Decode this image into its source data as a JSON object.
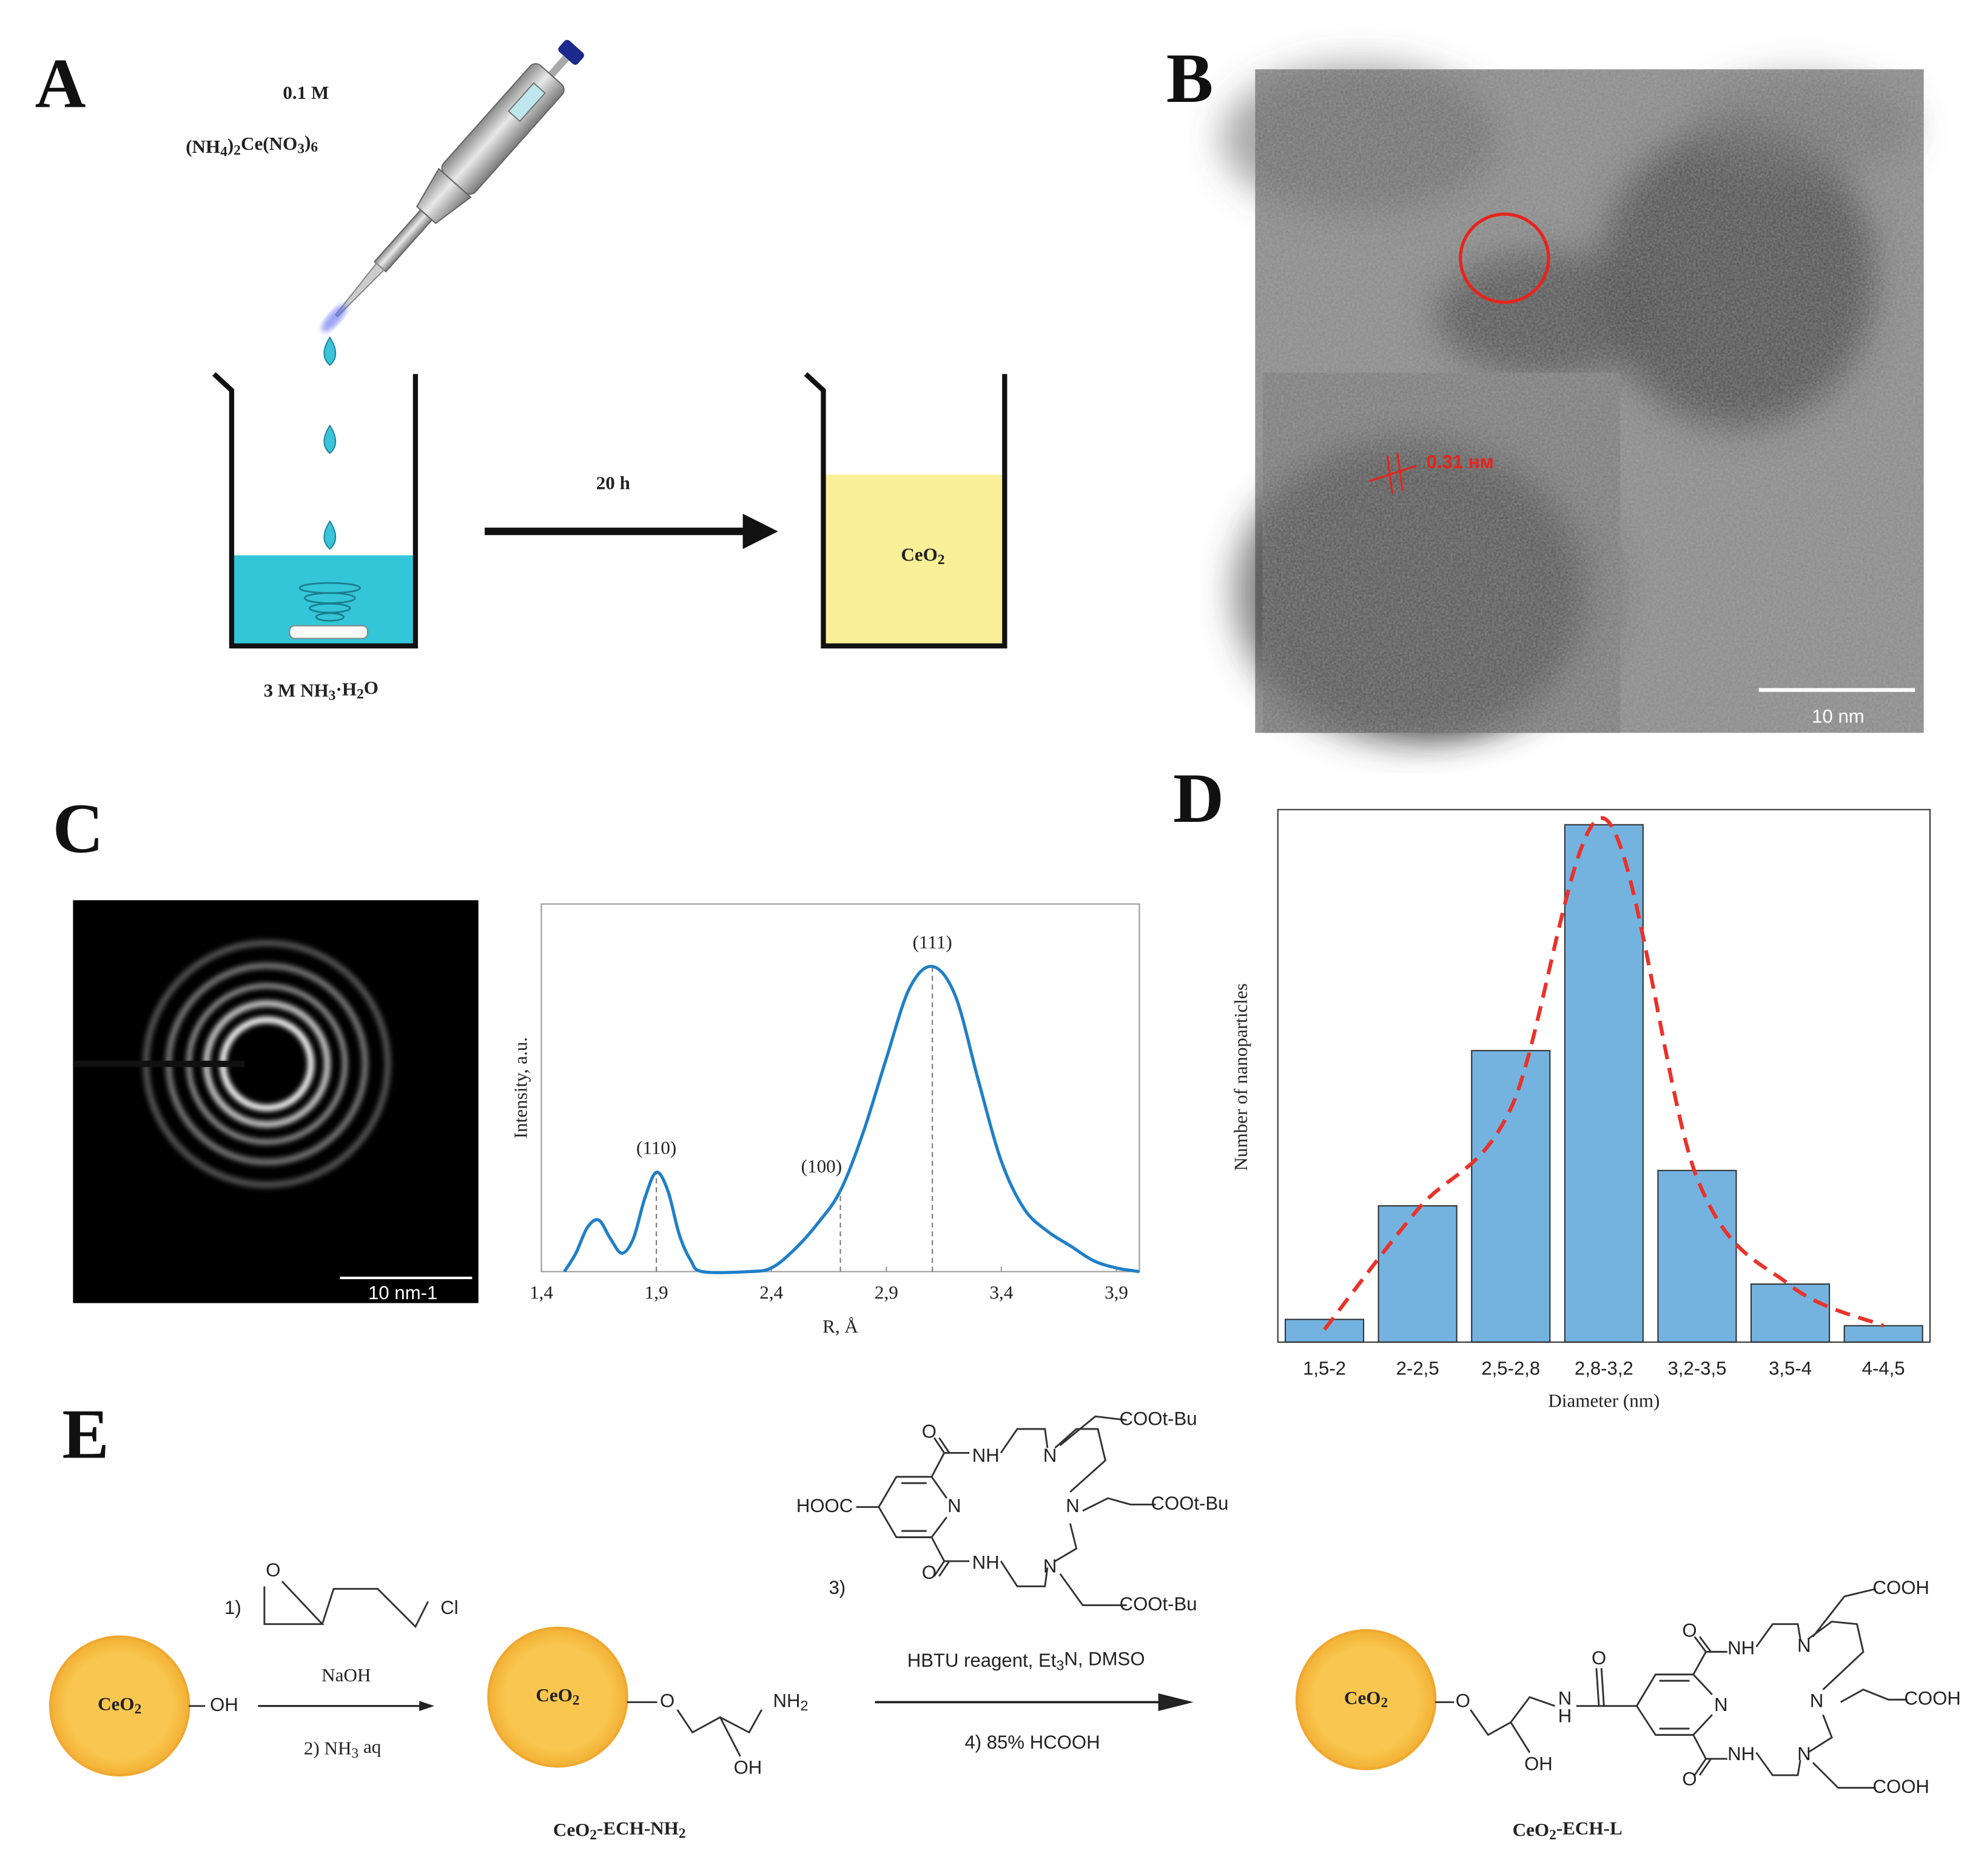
{
  "panel_a": {
    "label": "A",
    "reagent_conc": "0.1 M",
    "reagent": [
      "(NH",
      "4",
      ")",
      "2",
      "Ce(NO",
      "3",
      ")",
      "6"
    ],
    "solution": [
      "3 M NH",
      "3",
      "·H",
      "2",
      "O"
    ],
    "time": "20 h",
    "product": [
      "CeO",
      "2"
    ]
  },
  "panel_b": {
    "label": "B",
    "spacing": "0.31 нм",
    "scale_bar": "10 nm"
  },
  "panel_c": {
    "label": "C",
    "scale_bar": "10 nm-1"
  },
  "panel_d": {
    "label": "D"
  },
  "chart_data": [
    {
      "type": "line",
      "xlabel": "R, Å",
      "ylabel": "Intensity, a.u.",
      "color": "#1f7fc8",
      "x": [
        1.5,
        1.55,
        1.6,
        1.65,
        1.7,
        1.75,
        1.8,
        1.85,
        1.9,
        1.95,
        2.0,
        2.05,
        2.1,
        2.3,
        2.4,
        2.5,
        2.6,
        2.7,
        2.8,
        2.9,
        3.0,
        3.1,
        3.2,
        3.3,
        3.4,
        3.5,
        3.6,
        3.7,
        3.8,
        3.9,
        4.0
      ],
      "values": [
        0.0,
        0.05,
        0.12,
        0.14,
        0.09,
        0.05,
        0.09,
        0.2,
        0.27,
        0.22,
        0.1,
        0.03,
        0.0,
        0.0,
        0.01,
        0.06,
        0.13,
        0.22,
        0.38,
        0.58,
        0.77,
        0.83,
        0.75,
        0.52,
        0.3,
        0.17,
        0.11,
        0.07,
        0.03,
        0.01,
        0.0
      ],
      "xlim": [
        1.4,
        4.0
      ],
      "ylim": [
        0,
        1
      ],
      "xticks": [
        {
          "value": 1.4,
          "label": "1,4"
        },
        {
          "value": 1.9,
          "label": "1,9"
        },
        {
          "value": 2.4,
          "label": "2,4"
        },
        {
          "value": 2.9,
          "label": "2,9"
        },
        {
          "value": 3.4,
          "label": "3,4"
        },
        {
          "value": 3.9,
          "label": "3,9"
        }
      ],
      "peaks": [
        {
          "label": "(110)",
          "x": 1.9
        },
        {
          "label": "(100)",
          "x": 2.7
        },
        {
          "label": "(111)",
          "x": 3.1
        }
      ]
    },
    {
      "type": "bar",
      "xlabel": "Diameter (nm)",
      "ylabel": "Number of nanoparticles",
      "color": "#74b3e0",
      "categories": [
        "1,5-2",
        "2-2,5",
        "2,5-2,8",
        "2,8-3,2",
        "3,2-3,5",
        "3,5-4",
        "4-4,5"
      ],
      "values": [
        18,
        108,
        231,
        410,
        136,
        46,
        13
      ],
      "ylim": [
        0,
        420
      ],
      "fit": {
        "color": "#e8332b",
        "values": [
          10,
          105,
          185,
          415,
          130,
          45,
          13
        ]
      }
    }
  ],
  "panel_e": {
    "label": "E",
    "core": [
      "CeO",
      "2"
    ],
    "hydroxyl": "OH",
    "step1": "1)",
    "epoxide_o": "O",
    "chloro": "Cl",
    "base": "NaOH",
    "step2": [
      "2) NH",
      "3",
      " aq"
    ],
    "intermediate": {
      "core": [
        "CeO",
        "2"
      ],
      "ether_o": "O",
      "amine": [
        "NH",
        "2"
      ],
      "hydroxyl": "OH",
      "name": [
        "CeO",
        "2",
        "-ECH-NH",
        "2"
      ]
    },
    "ligand": {
      "step": "3)",
      "acid": "HOOC",
      "carbonyl_o": [
        "O",
        "O"
      ],
      "amide": [
        "NH",
        "NH"
      ],
      "amines": [
        "N",
        "N",
        "N"
      ],
      "ring_n": "N",
      "esters": [
        "COOt-Bu",
        "COOt-Bu",
        "COOt-Bu"
      ]
    },
    "reagents": [
      "HBTU reagent, Et",
      "3",
      "N, DMSO"
    ],
    "step4": "4)    85% HCOOH",
    "product": {
      "core": [
        "CeO",
        "2"
      ],
      "ether_o": "O",
      "hydroxyl": "OH",
      "amide_n": "N",
      "amide_h": "H",
      "link_o": "O",
      "ring_n": "N",
      "carbonyl_o": [
        "O",
        "O"
      ],
      "amide": [
        "NH",
        "NH"
      ],
      "amines": [
        "N",
        "N",
        "N"
      ],
      "acids": [
        "COOH",
        "COOH",
        "COOH"
      ],
      "name": [
        "CeO",
        "2",
        "-ECH-L"
      ]
    }
  }
}
